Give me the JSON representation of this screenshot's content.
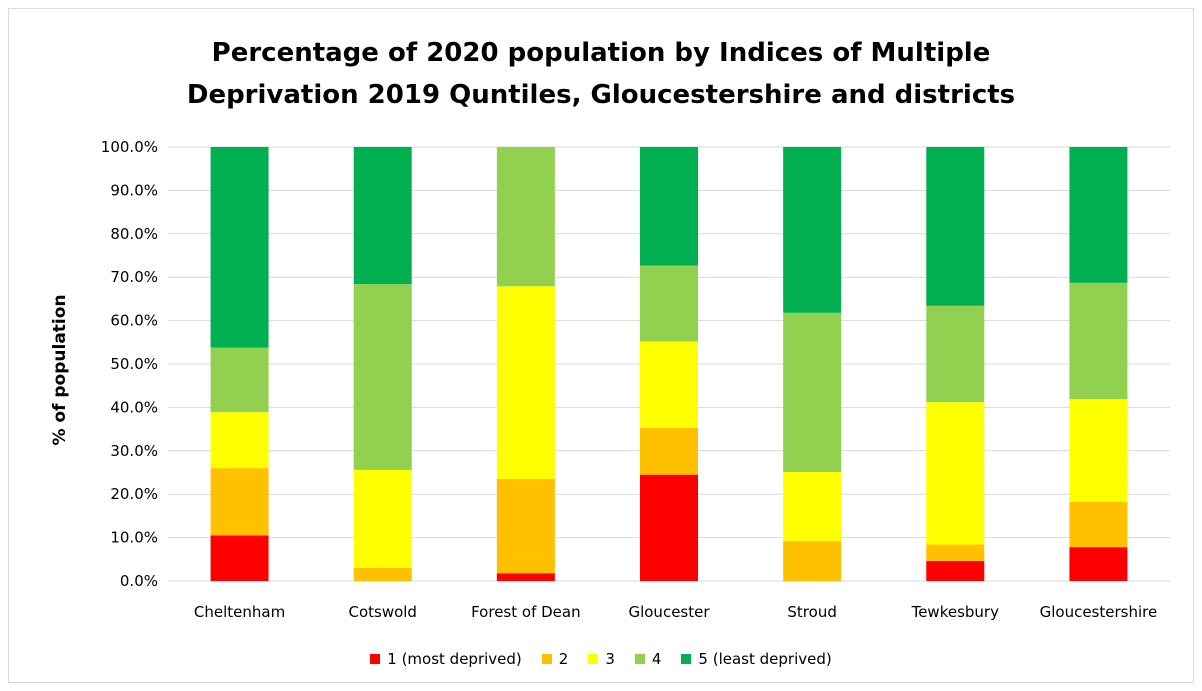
{
  "chart_data": {
    "type": "bar",
    "stacked": true,
    "title_lines": [
      "Percentage of 2020 population by Indices of Multiple",
      "Deprivation 2019 Quntiles, Gloucestershire and districts"
    ],
    "xlabel": "",
    "ylabel": "% of population",
    "ylim": [
      0,
      100
    ],
    "yticks": [
      "0.0%",
      "10.0%",
      "20.0%",
      "30.0%",
      "40.0%",
      "50.0%",
      "60.0%",
      "70.0%",
      "80.0%",
      "90.0%",
      "100.0%"
    ],
    "grid": true,
    "legend_position": "bottom",
    "categories": [
      "Cheltenham",
      "Cotswold",
      "Forest of Dean",
      "Gloucester",
      "Stroud",
      "Tewkesbury",
      "Gloucestershire"
    ],
    "series": [
      {
        "name": "1 (most deprived)",
        "color": "#ff0000",
        "values": [
          10.5,
          0.0,
          1.8,
          24.5,
          0.0,
          4.6,
          7.8
        ]
      },
      {
        "name": "2",
        "color": "#ffc000",
        "values": [
          15.5,
          3.0,
          21.7,
          10.8,
          9.2,
          3.8,
          10.4
        ]
      },
      {
        "name": "3",
        "color": "#ffff00",
        "values": [
          12.9,
          22.6,
          44.4,
          19.9,
          15.9,
          32.8,
          23.7
        ]
      },
      {
        "name": "4",
        "color": "#92d050",
        "values": [
          14.9,
          42.8,
          32.1,
          17.5,
          36.7,
          22.2,
          26.8
        ]
      },
      {
        "name": "5 (least deprived)",
        "color": "#00b050",
        "values": [
          46.2,
          31.6,
          0.0,
          27.3,
          38.2,
          36.6,
          31.3
        ]
      }
    ]
  }
}
